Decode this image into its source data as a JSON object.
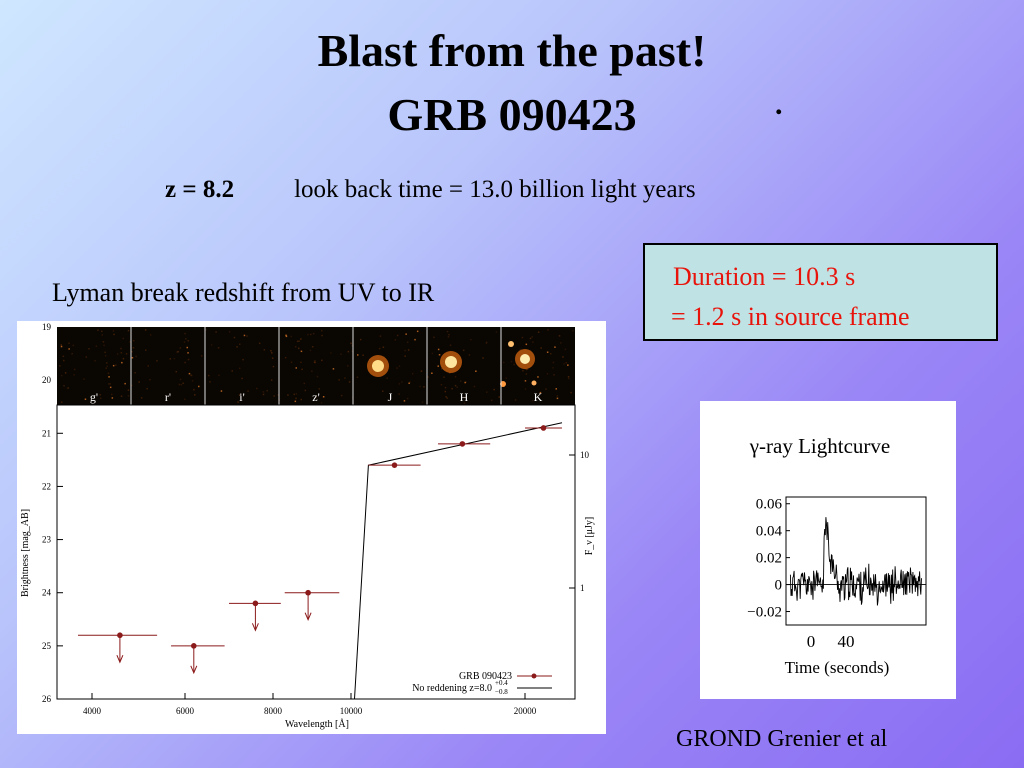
{
  "slide": {
    "title_line1": "Blast from the past!",
    "title_line2": "GRB 090423",
    "title_dot": ".",
    "redshift": "z = 8.2",
    "lookback": "look back time = 13.0  billion light years",
    "lyman_caption": "Lyman break redshift from UV to IR",
    "duration_line1": "Duration = 10.3 s",
    "duration_line2": "= 1.2 s in source frame",
    "credit": "GROND  Grenier et al"
  },
  "colors": {
    "duration_text": "#e8140c",
    "duration_box": "#bfe3e4",
    "data_point": "#8b1a1a"
  },
  "chart_data": [
    {
      "type": "scatter",
      "xlabel": "Wavelength [Å]",
      "ylabel": "Brightness [mag_AB]",
      "y2label": "F_ν [μJy]",
      "xlim": [
        3500,
        23000
      ],
      "ylim": [
        26,
        19
      ],
      "x_ticks": [
        "4000",
        "6000",
        "8000",
        "10000",
        "20000"
      ],
      "y_ticks": [
        "19",
        "20",
        "21",
        "22",
        "23",
        "24",
        "25",
        "26"
      ],
      "y2_ticks": [
        "10",
        "1"
      ],
      "filter_bands": [
        "g'",
        "r'",
        "i'",
        "z'",
        "J",
        "H",
        "K"
      ],
      "legend": {
        "placement": "bottom-right",
        "series_label": "GRB 090423",
        "model_label": "No reddening z=8.0",
        "model_sup": "+0.4",
        "model_sub": "−0.8"
      },
      "points": [
        {
          "band": "g'",
          "x": 4600,
          "y": 24.8,
          "xerr": [
            3800,
            5400
          ],
          "upper_limit": true
        },
        {
          "band": "r'",
          "x": 6200,
          "y": 25.0,
          "xerr": [
            5700,
            6900
          ],
          "upper_limit": true
        },
        {
          "band": "i'",
          "x": 7600,
          "y": 24.2,
          "xerr": [
            7000,
            8200
          ],
          "upper_limit": true
        },
        {
          "band": "z'",
          "x": 8900,
          "y": 24.0,
          "xerr": [
            8300,
            9700
          ],
          "upper_limit": true
        },
        {
          "band": "J",
          "x": 12500,
          "y": 21.6,
          "xerr": [
            11000,
            14000
          ],
          "upper_limit": false
        },
        {
          "band": "H",
          "x": 16400,
          "y": 21.2,
          "xerr": [
            15000,
            18000
          ],
          "upper_limit": false
        },
        {
          "band": "K",
          "x": 21500,
          "y": 20.9,
          "xerr": [
            20000,
            23000
          ],
          "upper_limit": false
        }
      ],
      "model": [
        [
          10200,
          26
        ],
        [
          11000,
          21.6
        ],
        [
          23000,
          20.8
        ]
      ]
    },
    {
      "type": "line",
      "title": "γ-ray Lightcurve",
      "xlabel": "Time (seconds)",
      "xlim": [
        -40,
        120
      ],
      "ylim": [
        -0.03,
        0.065
      ],
      "x_ticks": [
        "0",
        "40"
      ],
      "y_ticks": [
        "0.06",
        "0.04",
        "0.02",
        "0",
        "−0.02"
      ]
    }
  ]
}
